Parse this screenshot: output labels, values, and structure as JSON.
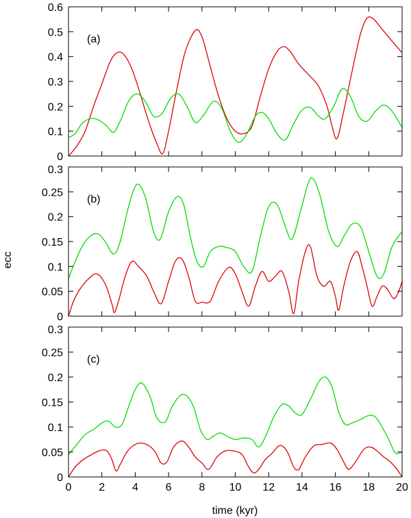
{
  "chart_data": {
    "type": "line",
    "xlabel": "time (kyr)",
    "ylabel": "ecc",
    "xlim": [
      0,
      20
    ],
    "xticks": [
      0,
      2,
      4,
      6,
      8,
      10,
      12,
      14,
      16,
      18,
      20
    ],
    "series_colors": {
      "red": "#dd0000",
      "green": "#00dd00"
    },
    "panels": [
      {
        "label": "(a)",
        "ylim": [
          0,
          0.6
        ],
        "yticks": [
          "0",
          "0.1",
          "0.2",
          "0.3",
          "0.4",
          "0.5",
          "0.6"
        ],
        "series": [
          {
            "name": "red",
            "x": [
              0,
              0.5,
              1,
              1.5,
              2,
              2.5,
              2.9,
              3.3,
              3.8,
              4.3,
              4.8,
              5.3,
              5.65,
              6.0,
              6.5,
              7.0,
              7.6,
              8.0,
              8.5,
              9.0,
              9.5,
              10.0,
              10.5,
              11.0,
              11.5,
              12.0,
              12.5,
              12.9,
              13.3,
              13.8,
              14.5,
              15.0,
              15.5,
              15.8,
              16.1,
              16.5,
              17.0,
              17.5,
              17.9,
              18.3,
              18.8,
              19.3,
              20.0
            ],
            "y": [
              0.0,
              0.04,
              0.1,
              0.2,
              0.29,
              0.38,
              0.415,
              0.41,
              0.35,
              0.25,
              0.14,
              0.05,
              0.01,
              0.1,
              0.27,
              0.42,
              0.505,
              0.48,
              0.36,
              0.24,
              0.15,
              0.1,
              0.09,
              0.12,
              0.24,
              0.35,
              0.42,
              0.44,
              0.42,
              0.37,
              0.32,
              0.28,
              0.2,
              0.12,
              0.07,
              0.18,
              0.34,
              0.49,
              0.555,
              0.55,
              0.51,
              0.47,
              0.415
            ]
          },
          {
            "name": "green",
            "x": [
              0,
              0.4,
              0.8,
              1.3,
              1.8,
              2.3,
              2.7,
              3.1,
              3.6,
              4.1,
              4.6,
              5.1,
              5.6,
              6.1,
              6.6,
              7.1,
              7.6,
              8.1,
              8.7,
              9.2,
              9.7,
              10.2,
              10.7,
              11.2,
              11.6,
              12.0,
              12.5,
              13.0,
              13.5,
              14.0,
              14.5,
              15.0,
              15.4,
              15.9,
              16.4,
              16.9,
              17.4,
              17.9,
              18.4,
              18.9,
              19.4,
              20.0
            ],
            "y": [
              0.075,
              0.09,
              0.13,
              0.15,
              0.145,
              0.12,
              0.095,
              0.14,
              0.22,
              0.25,
              0.22,
              0.16,
              0.17,
              0.23,
              0.25,
              0.2,
              0.135,
              0.165,
              0.22,
              0.19,
              0.1,
              0.055,
              0.09,
              0.16,
              0.175,
              0.15,
              0.09,
              0.065,
              0.13,
              0.185,
              0.195,
              0.16,
              0.15,
              0.2,
              0.27,
              0.24,
              0.16,
              0.14,
              0.18,
              0.205,
              0.18,
              0.115
            ]
          }
        ]
      },
      {
        "label": "(b)",
        "ylim": [
          0,
          0.3
        ],
        "yticks": [
          "0",
          "0.05",
          "0.1",
          "0.15",
          "0.2",
          "0.25",
          "0.3"
        ],
        "series": [
          {
            "name": "red",
            "x": [
              0,
              0.3,
              0.7,
              1.2,
              1.7,
              2.2,
              2.6,
              2.75,
              3.0,
              3.4,
              3.8,
              4.2,
              4.7,
              5.1,
              5.55,
              6.0,
              6.4,
              6.8,
              7.2,
              7.6,
              8.0,
              8.5,
              9.0,
              9.6,
              10.0,
              10.4,
              10.8,
              11.2,
              11.6,
              12.0,
              12.4,
              12.8,
              13.2,
              13.5,
              13.8,
              14.2,
              14.5,
              14.9,
              15.3,
              15.7,
              16.0,
              16.2,
              16.5,
              16.9,
              17.3,
              17.6,
              17.9,
              18.2,
              18.5,
              18.8,
              19.1,
              19.5,
              19.8,
              20.0
            ],
            "y": [
              0.0,
              0.03,
              0.055,
              0.075,
              0.085,
              0.065,
              0.025,
              0.007,
              0.03,
              0.08,
              0.11,
              0.1,
              0.08,
              0.05,
              0.025,
              0.07,
              0.11,
              0.115,
              0.08,
              0.03,
              0.028,
              0.03,
              0.07,
              0.098,
              0.085,
              0.05,
              0.02,
              0.06,
              0.09,
              0.07,
              0.08,
              0.09,
              0.05,
              0.005,
              0.07,
              0.13,
              0.14,
              0.08,
              0.06,
              0.07,
              0.04,
              0.012,
              0.06,
              0.11,
              0.13,
              0.1,
              0.06,
              0.02,
              0.04,
              0.06,
              0.055,
              0.035,
              0.05,
              0.07
            ]
          },
          {
            "name": "green",
            "x": [
              0,
              0.4,
              0.9,
              1.4,
              1.8,
              2.2,
              2.7,
              3.1,
              3.6,
              4.1,
              4.6,
              5.1,
              5.5,
              6.0,
              6.5,
              6.9,
              7.3,
              7.7,
              8.1,
              8.5,
              9.0,
              9.5,
              10.0,
              10.5,
              11.0,
              11.5,
              12.0,
              12.5,
              13.0,
              13.4,
              13.9,
              14.4,
              14.7,
              15.1,
              15.6,
              16.1,
              16.5,
              17.0,
              17.5,
              18.0,
              18.5,
              18.9,
              19.4,
              20.0
            ],
            "y": [
              0.075,
              0.11,
              0.145,
              0.163,
              0.165,
              0.15,
              0.125,
              0.15,
              0.22,
              0.265,
              0.24,
              0.17,
              0.155,
              0.21,
              0.24,
              0.225,
              0.16,
              0.11,
              0.1,
              0.13,
              0.14,
              0.138,
              0.13,
              0.1,
              0.09,
              0.16,
              0.22,
              0.225,
              0.18,
              0.155,
              0.21,
              0.27,
              0.275,
              0.24,
              0.17,
              0.14,
              0.16,
              0.185,
              0.18,
              0.13,
              0.08,
              0.085,
              0.14,
              0.17
            ]
          }
        ]
      },
      {
        "label": "(c)",
        "ylim": [
          0,
          0.3
        ],
        "yticks": [
          "0",
          "0.05",
          "0.1",
          "0.15",
          "0.2",
          "0.25",
          "0.3"
        ],
        "series": [
          {
            "name": "red",
            "x": [
              0,
              0.4,
              0.9,
              1.4,
              1.9,
              2.3,
              2.6,
              2.85,
              3.1,
              3.5,
              3.9,
              4.3,
              4.8,
              5.2,
              5.55,
              5.9,
              6.3,
              6.8,
              7.2,
              7.6,
              8.0,
              8.4,
              8.9,
              9.4,
              9.9,
              10.4,
              10.8,
              11.1,
              11.4,
              11.8,
              12.2,
              12.6,
              12.9,
              13.2,
              13.5,
              13.8,
              14.2,
              14.7,
              15.2,
              15.7,
              16.1,
              16.5,
              16.8,
              17.2,
              17.7,
              18.1,
              18.5,
              18.9,
              19.3,
              19.7,
              20.0
            ],
            "y": [
              0.0,
              0.02,
              0.035,
              0.045,
              0.053,
              0.052,
              0.035,
              0.012,
              0.025,
              0.05,
              0.063,
              0.068,
              0.063,
              0.05,
              0.028,
              0.03,
              0.06,
              0.072,
              0.06,
              0.04,
              0.028,
              0.015,
              0.04,
              0.052,
              0.052,
              0.045,
              0.02,
              0.008,
              0.015,
              0.035,
              0.047,
              0.062,
              0.06,
              0.045,
              0.02,
              0.015,
              0.04,
              0.062,
              0.065,
              0.068,
              0.055,
              0.03,
              0.015,
              0.03,
              0.055,
              0.06,
              0.052,
              0.04,
              0.03,
              0.015,
              0.0
            ]
          },
          {
            "name": "green",
            "x": [
              0,
              0.5,
              1.0,
              1.5,
              2.0,
              2.4,
              2.8,
              3.2,
              3.6,
              4.0,
              4.4,
              4.9,
              5.3,
              5.8,
              6.2,
              6.7,
              7.1,
              7.5,
              7.9,
              8.3,
              8.7,
              9.1,
              9.6,
              10.0,
              10.5,
              11.0,
              11.4,
              11.8,
              12.3,
              12.8,
              13.2,
              13.6,
              14.0,
              14.5,
              15.0,
              15.4,
              15.8,
              16.2,
              16.6,
              17.0,
              17.5,
              18.0,
              18.4,
              18.8,
              19.2,
              19.6,
              20.0
            ],
            "y": [
              0.045,
              0.065,
              0.085,
              0.095,
              0.108,
              0.112,
              0.1,
              0.105,
              0.14,
              0.175,
              0.188,
              0.16,
              0.118,
              0.11,
              0.14,
              0.163,
              0.162,
              0.14,
              0.095,
              0.075,
              0.082,
              0.088,
              0.08,
              0.075,
              0.078,
              0.075,
              0.06,
              0.08,
              0.12,
              0.145,
              0.142,
              0.128,
              0.125,
              0.155,
              0.19,
              0.2,
              0.18,
              0.13,
              0.105,
              0.108,
              0.115,
              0.123,
              0.12,
              0.1,
              0.075,
              0.048,
              0.05
            ]
          }
        ]
      }
    ]
  }
}
